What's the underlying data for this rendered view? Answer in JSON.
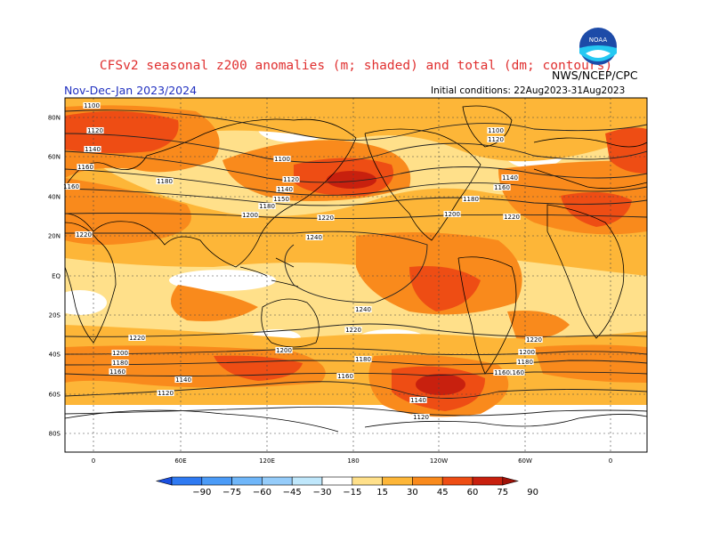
{
  "header": {
    "title": "CFSv2 seasonal z200 anomalies (m; shaded) and total (dm; contours)",
    "period": "Nov-Dec-Jan 2023/2024",
    "initial_conditions": "Initial conditions: 22Aug2023-31Aug2023",
    "agency": "NWS/NCEP/CPC",
    "logo_text": "NOAA"
  },
  "map": {
    "lat_labels": [
      "80N",
      "60N",
      "40N",
      "20N",
      "EQ",
      "20S",
      "40S",
      "60S",
      "80S"
    ],
    "lon_labels": [
      "0",
      "60E",
      "120E",
      "180",
      "120W",
      "60W",
      "0"
    ],
    "contour_labels": [
      "1100",
      "1120",
      "1140",
      "1160",
      "1160",
      "1180",
      "1200",
      "1220",
      "1100",
      "1120",
      "1140",
      "1150",
      "1160",
      "1180",
      "1220",
      "1240",
      "1100",
      "1120",
      "1140",
      "1160",
      "1180",
      "1200",
      "1220",
      "1220",
      "1240",
      "1220",
      "1220",
      "1200",
      "1180",
      "1160",
      "1140",
      "1120",
      "1220",
      "1200",
      "1180",
      "1160",
      "1140",
      "1120",
      "1160",
      "1180",
      "1200",
      "1220",
      "1140",
      "1120",
      "1160",
      "1200",
      "1220"
    ],
    "colors": {
      "ocean_bg": "#ffffff",
      "light": "#ffe08a",
      "mid": "#fdb638",
      "orange": "#f98a1c",
      "red": "#ee4d14",
      "dark": "#c8200e",
      "blue_light": "#a6e3f5"
    }
  },
  "colorbar": {
    "labels": [
      "−90",
      "−75",
      "−60",
      "−45",
      "−30",
      "−15",
      "15",
      "30",
      "45",
      "60",
      "75",
      "90"
    ],
    "colors": [
      "#1a4fe0",
      "#2f7af2",
      "#4b9bf7",
      "#6fb6f9",
      "#95ccfa",
      "#bfe7fb",
      "#ffffff",
      "#ffe08a",
      "#fdb638",
      "#f98a1c",
      "#ee4d14",
      "#c8200e",
      "#a01208"
    ]
  }
}
